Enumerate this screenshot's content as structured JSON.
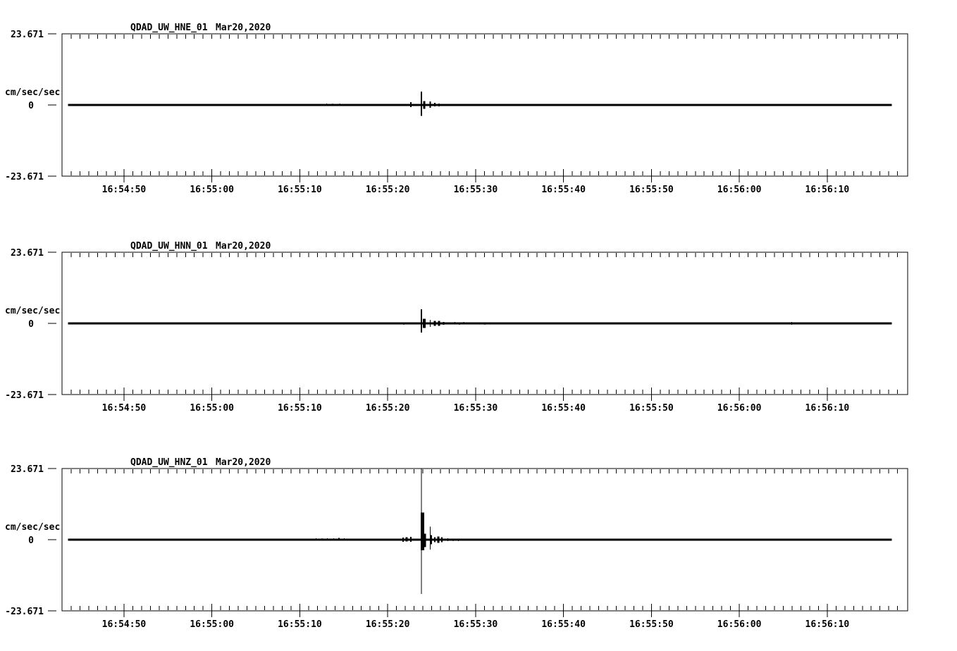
{
  "page": {
    "background": "#ffffff",
    "foreground": "#000000",
    "description": "Three-component seismic acceleration waveform plots"
  },
  "chart_data": [
    {
      "type": "line",
      "title": "QDAD_UW_HNE_01",
      "date": "Mar20,2020",
      "ylabel": "cm/sec/sec",
      "ylim": [
        -23.671,
        23.671
      ],
      "yticks": [
        "23.671",
        "0",
        "-23.671"
      ],
      "xticks": [
        "16:54:50",
        "16:55:00",
        "16:55:10",
        "16:55:20",
        "16:55:30",
        "16:55:40",
        "16:55:50",
        "16:56:00",
        "16:56:10"
      ],
      "x_window_seconds": 96.2,
      "x_first_tick_offset_s": 7.05,
      "x_major_interval_s": 10,
      "x_minor_interval_s": 1,
      "grid": false,
      "legend": null,
      "baseline_value": 0,
      "trace_start_s": 0.7,
      "trace_end_s": 94.4,
      "events": [
        {
          "t": 30.1,
          "up": 0.5,
          "down": 0.2,
          "w": 1
        },
        {
          "t": 30.8,
          "up": 0.5,
          "down": 0.2,
          "w": 1
        },
        {
          "t": 31.6,
          "up": 0.5,
          "down": 0.3,
          "w": 1
        },
        {
          "t": 39.7,
          "up": 0.9,
          "down": 0.7,
          "w": 2
        },
        {
          "t": 40.9,
          "up": 4.5,
          "down": 3.6,
          "w": 2
        },
        {
          "t": 41.2,
          "up": 1.3,
          "down": 1.3,
          "w": 3
        },
        {
          "t": 41.9,
          "up": 1.2,
          "down": 0.9,
          "w": 2
        },
        {
          "t": 42.4,
          "up": 0.7,
          "down": 0.5,
          "w": 2
        },
        {
          "t": 42.9,
          "up": 0.5,
          "down": 0.5,
          "w": 2
        }
      ]
    },
    {
      "type": "line",
      "title": "QDAD_UW_HNN_01",
      "date": "Mar20,2020",
      "ylabel": "cm/sec/sec",
      "ylim": [
        -23.671,
        23.671
      ],
      "yticks": [
        "23.671",
        "0",
        "-23.671"
      ],
      "xticks": [
        "16:54:50",
        "16:55:00",
        "16:55:10",
        "16:55:20",
        "16:55:30",
        "16:55:40",
        "16:55:50",
        "16:56:00",
        "16:56:10"
      ],
      "x_window_seconds": 96.2,
      "x_first_tick_offset_s": 7.05,
      "x_major_interval_s": 10,
      "x_minor_interval_s": 1,
      "grid": false,
      "legend": null,
      "baseline_value": 0,
      "trace_start_s": 0.7,
      "trace_end_s": 94.4,
      "events": [
        {
          "t": 38.9,
          "up": 0.2,
          "down": 0.5,
          "w": 1
        },
        {
          "t": 40.9,
          "up": 4.7,
          "down": 3.1,
          "w": 2
        },
        {
          "t": 41.2,
          "up": 1.5,
          "down": 1.5,
          "w": 4
        },
        {
          "t": 41.9,
          "up": 1.2,
          "down": 1.2,
          "w": 1
        },
        {
          "t": 42.4,
          "up": 0.8,
          "down": 0.8,
          "w": 3
        },
        {
          "t": 42.9,
          "up": 0.8,
          "down": 0.8,
          "w": 3
        },
        {
          "t": 43.4,
          "up": 0.5,
          "down": 0.5,
          "w": 2
        },
        {
          "t": 44.7,
          "up": 0.5,
          "down": 0.2,
          "w": 1
        },
        {
          "t": 45.2,
          "up": 0.2,
          "down": 0.5,
          "w": 1
        },
        {
          "t": 45.7,
          "up": 0.5,
          "down": 0.2,
          "w": 1
        },
        {
          "t": 46.9,
          "up": 0.3,
          "down": 0.3,
          "w": 1
        },
        {
          "t": 48.1,
          "up": 0.2,
          "down": 0.5,
          "w": 1
        },
        {
          "t": 65.1,
          "up": 0.2,
          "down": 0.2,
          "w": 1
        },
        {
          "t": 83.0,
          "up": 0.5,
          "down": 0.5,
          "w": 1
        }
      ]
    },
    {
      "type": "line",
      "title": "QDAD_UW_HNZ_01",
      "date": "Mar20,2020",
      "ylabel": "cm/sec/sec",
      "ylim": [
        -23.671,
        23.671
      ],
      "yticks": [
        "23.671",
        "0",
        "-23.671"
      ],
      "xticks": [
        "16:54:50",
        "16:55:00",
        "16:55:10",
        "16:55:20",
        "16:55:30",
        "16:55:40",
        "16:55:50",
        "16:56:00",
        "16:56:10"
      ],
      "x_window_seconds": 96.2,
      "x_first_tick_offset_s": 7.05,
      "x_major_interval_s": 10,
      "x_minor_interval_s": 1,
      "grid": false,
      "legend": null,
      "baseline_value": 0,
      "trace_start_s": 0.7,
      "trace_end_s": 94.4,
      "events": [
        {
          "t": 27.7,
          "up": 0.4,
          "down": 0.2,
          "w": 1
        },
        {
          "t": 28.9,
          "up": 0.5,
          "down": 0.3,
          "w": 1
        },
        {
          "t": 29.6,
          "up": 0.5,
          "down": 0.3,
          "w": 1
        },
        {
          "t": 30.2,
          "up": 0.5,
          "down": 0.3,
          "w": 1
        },
        {
          "t": 30.9,
          "up": 0.5,
          "down": 0.3,
          "w": 1
        },
        {
          "t": 31.5,
          "up": 0.6,
          "down": 0.4,
          "w": 2
        },
        {
          "t": 32.1,
          "up": 0.5,
          "down": 0.3,
          "w": 1
        },
        {
          "t": 33.2,
          "up": 0.4,
          "down": 0.3,
          "w": 1
        },
        {
          "t": 33.9,
          "up": 0.4,
          "down": 0.3,
          "w": 1
        },
        {
          "t": 38.8,
          "up": 0.7,
          "down": 0.7,
          "w": 2
        },
        {
          "t": 39.2,
          "up": 0.8,
          "down": 0.6,
          "w": 3
        },
        {
          "t": 39.7,
          "up": 0.9,
          "down": 0.7,
          "w": 2
        },
        {
          "t": 40.9,
          "up": 23.7,
          "down": 18.0,
          "w": 1
        },
        {
          "t": 41.0,
          "up": 9.0,
          "down": 3.5,
          "w": 5
        },
        {
          "t": 41.3,
          "up": 2.0,
          "down": 2.5,
          "w": 3
        },
        {
          "t": 41.9,
          "up": 4.3,
          "down": 3.3,
          "w": 1
        },
        {
          "t": 41.95,
          "up": 1.5,
          "down": 1.5,
          "w": 3
        },
        {
          "t": 42.4,
          "up": 0.8,
          "down": 0.8,
          "w": 2
        },
        {
          "t": 42.8,
          "up": 1.0,
          "down": 1.0,
          "w": 3
        },
        {
          "t": 43.2,
          "up": 0.8,
          "down": 0.8,
          "w": 2
        },
        {
          "t": 43.9,
          "up": 0.5,
          "down": 0.5,
          "w": 1
        },
        {
          "t": 44.5,
          "up": 0.2,
          "down": 0.5,
          "w": 1
        },
        {
          "t": 45.1,
          "up": 0.2,
          "down": 0.5,
          "w": 1
        },
        {
          "t": 45.9,
          "up": 0.4,
          "down": 0.4,
          "w": 1
        }
      ]
    }
  ]
}
